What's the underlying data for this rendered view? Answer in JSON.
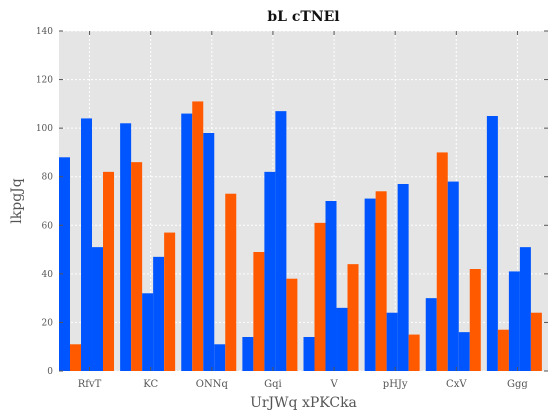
{
  "chart_data": {
    "type": "bar",
    "title": "bL cTNEl",
    "xlabel": "UrJWq xPKCka",
    "ylabel": "lkpgJq",
    "ylim": [
      0,
      140
    ],
    "yticks": [
      0,
      20,
      40,
      60,
      80,
      100,
      120,
      140
    ],
    "grid": true,
    "legend": "none",
    "categories": [
      "RfvT",
      "KC",
      "ONNq",
      "Gqi",
      "V",
      "pHJy",
      "CxV",
      "Ggg"
    ],
    "series": [
      {
        "color": "#0055ff",
        "values": [
          88,
          102,
          106,
          14,
          14,
          71,
          30,
          105
        ]
      },
      {
        "color": "#ff5a00",
        "values": [
          11,
          86,
          111,
          49,
          61,
          74,
          90,
          17
        ]
      },
      {
        "color": "#0055ff",
        "values": [
          104,
          32,
          98,
          82,
          70,
          24,
          78,
          41
        ]
      },
      {
        "color": "#0055ff",
        "values": [
          51,
          47,
          11,
          107,
          26,
          77,
          16,
          51
        ]
      },
      {
        "color": "#ff5a00",
        "values": [
          82,
          57,
          73,
          38,
          44,
          15,
          42,
          24
        ]
      }
    ],
    "colors": {
      "background": "#e5e5e5",
      "grid": "#ffffff"
    }
  }
}
